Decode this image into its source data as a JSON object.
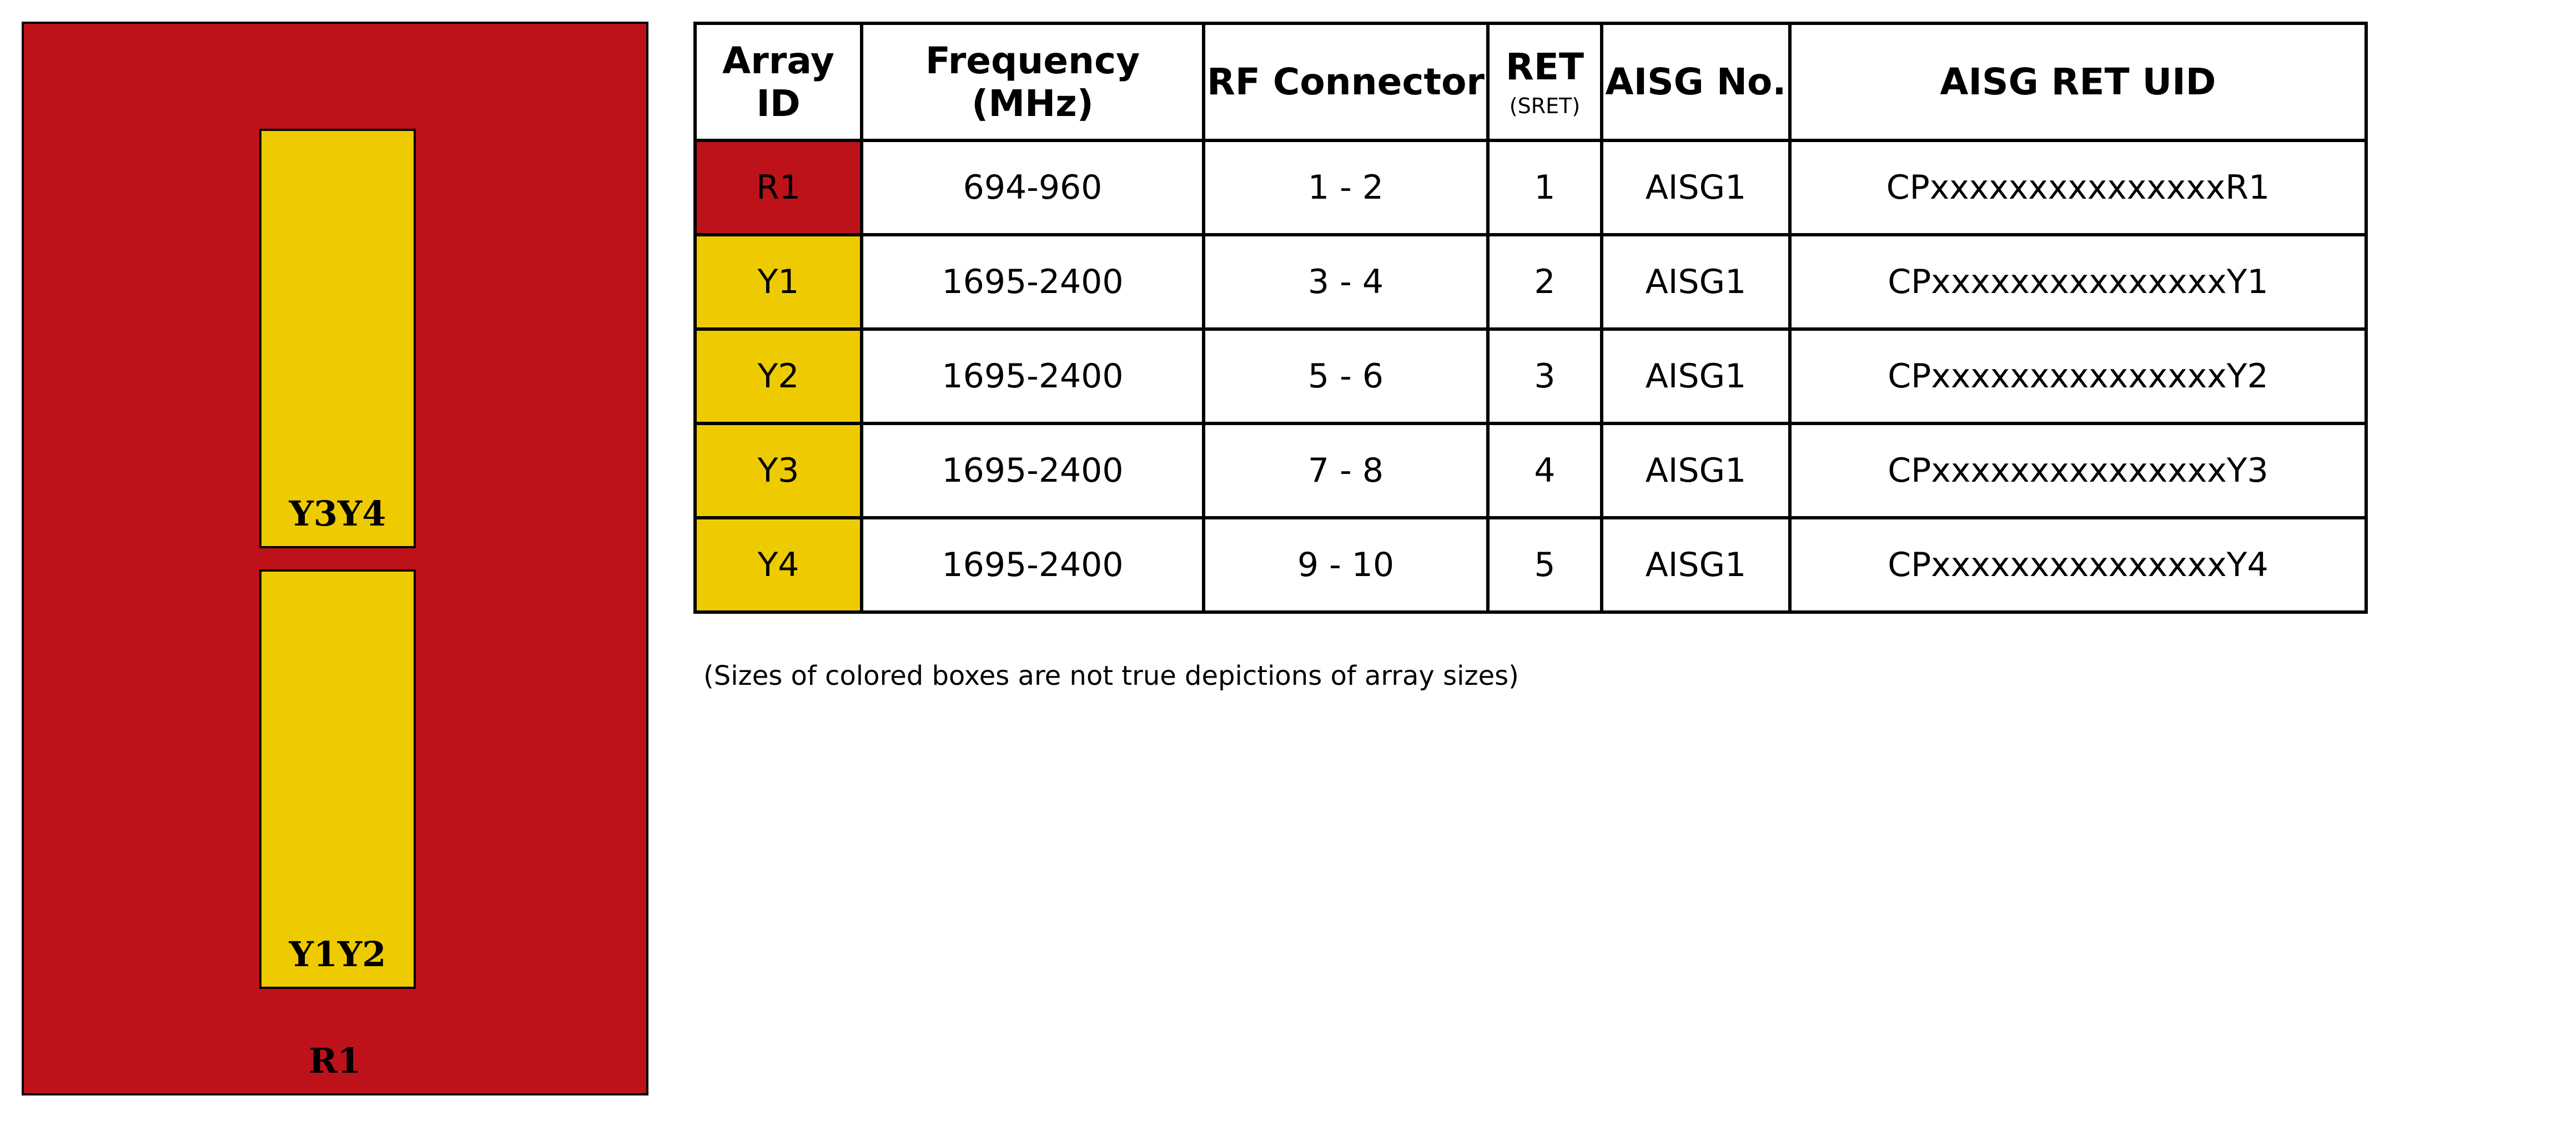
{
  "colors": {
    "red": "#be121b",
    "yellow": "#eecb00"
  },
  "diagram": {
    "outer_label": "R1",
    "upper_array_label": "Y3Y4",
    "lower_array_label": "Y1Y2"
  },
  "table": {
    "headers": {
      "array_id": "Array ID",
      "frequency": "Frequency (MHz)",
      "rf_connector": "RF Connector",
      "ret": "RET",
      "ret_sub": "(SRET)",
      "aisg_no": "AISG No.",
      "aisg_uid": "AISG RET UID"
    },
    "rows": [
      {
        "array_id": "R1",
        "color": "#be121b",
        "frequency": "694-960",
        "rf_connector": "1 - 2",
        "ret": "1",
        "aisg_no": "AISG1",
        "aisg_uid": "CPxxxxxxxxxxxxxxxR1"
      },
      {
        "array_id": "Y1",
        "color": "#eecb00",
        "frequency": "1695-2400",
        "rf_connector": "3 - 4",
        "ret": "2",
        "aisg_no": "AISG1",
        "aisg_uid": "CPxxxxxxxxxxxxxxxY1"
      },
      {
        "array_id": "Y2",
        "color": "#eecb00",
        "frequency": "1695-2400",
        "rf_connector": "5 - 6",
        "ret": "3",
        "aisg_no": "AISG1",
        "aisg_uid": "CPxxxxxxxxxxxxxxxY2"
      },
      {
        "array_id": "Y3",
        "color": "#eecb00",
        "frequency": "1695-2400",
        "rf_connector": "7 - 8",
        "ret": "4",
        "aisg_no": "AISG1",
        "aisg_uid": "CPxxxxxxxxxxxxxxxY3"
      },
      {
        "array_id": "Y4",
        "color": "#eecb00",
        "frequency": "1695-2400",
        "rf_connector": "9 - 10",
        "ret": "5",
        "aisg_no": "AISG1",
        "aisg_uid": "CPxxxxxxxxxxxxxxxY4"
      }
    ]
  },
  "footnote": "(Sizes of colored boxes are not true depictions of array sizes)"
}
